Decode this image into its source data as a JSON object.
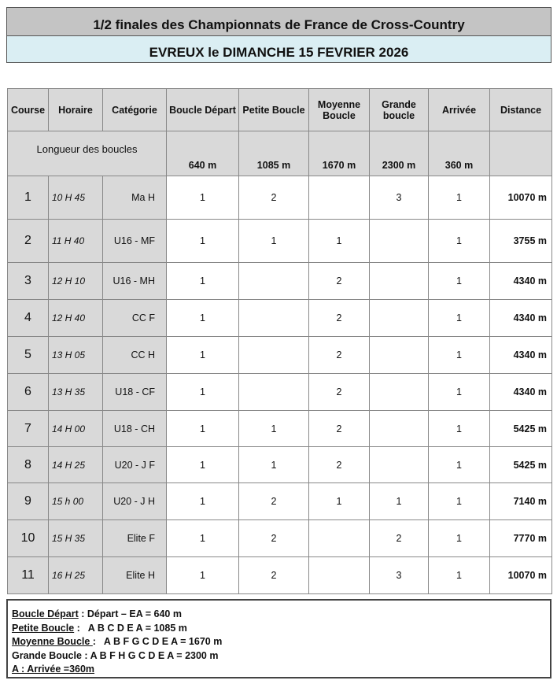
{
  "title": "1/2 finales des Championnats de France de Cross-Country",
  "subtitle": "EVREUX le DIMANCHE 15 FEVRIER 2026",
  "headers": [
    "Course",
    "Horaire",
    "Catégorie",
    "Boucle Départ",
    "Petite Boucle",
    "Moyenne Boucle",
    "Grande boucle",
    "Arrivée",
    "Distance"
  ],
  "lengths": {
    "label": "Longueur des boucles",
    "values": [
      "640 m",
      "1085 m",
      "1670 m",
      "2300 m",
      "360 m"
    ]
  },
  "rows": [
    [
      "1",
      "10 H 45",
      "Ma H",
      "1",
      "2",
      "",
      "3",
      "1",
      "10070 m"
    ],
    [
      "2",
      "11 H 40",
      "U16 - MF",
      "1",
      "1",
      "1",
      "",
      "1",
      "3755 m"
    ],
    [
      "3",
      "12 H 10",
      "U16 - MH",
      "1",
      "",
      "2",
      "",
      "1",
      "4340 m"
    ],
    [
      "4",
      "12 H 40",
      "CC F",
      "1",
      "",
      "2",
      "",
      "1",
      "4340 m"
    ],
    [
      "5",
      "13 H 05",
      "CC H",
      "1",
      "",
      "2",
      "",
      "1",
      "4340 m"
    ],
    [
      "6",
      "13 H 35",
      "U18 - CF",
      "1",
      "",
      "2",
      "",
      "1",
      "4340 m"
    ],
    [
      "7",
      "14 H 00",
      "U18 - CH",
      "1",
      "1",
      "2",
      "",
      "1",
      "5425 m"
    ],
    [
      "8",
      "14 H 25",
      "U20 - J F",
      "1",
      "1",
      "2",
      "",
      "1",
      "5425 m"
    ],
    [
      "9",
      "15 h 00",
      "U20 - J H",
      "1",
      "2",
      "1",
      "1",
      "1",
      "7140 m"
    ],
    [
      "10",
      "15 H 35",
      "Elite F",
      "1",
      "2",
      "",
      "2",
      "1",
      "7770 m"
    ],
    [
      "11",
      "16 H 25",
      "Elite H",
      "1",
      "2",
      "",
      "3",
      "1",
      "10070 m"
    ]
  ],
  "legend": [
    {
      "key": "Boucle Départ",
      "sep": " : ",
      "text": "Départ – EA = 640 m",
      "underline": true
    },
    {
      "key": "Petite Boucle",
      "sep": " :   ",
      "text": "A B C D E A = 1085 m",
      "underline": true
    },
    {
      "key": "Moyenne Boucle ",
      "sep": ":   ",
      "text": "A B F G C D E A = 1670 m",
      "underline": true
    },
    {
      "key": "Grande Boucle",
      "sep": " : ",
      "text": "A B F H G C D E A = 2300 m",
      "underline": false
    },
    {
      "key": "A : Arrivée =360m",
      "sep": "",
      "text": "",
      "underline": true
    }
  ]
}
